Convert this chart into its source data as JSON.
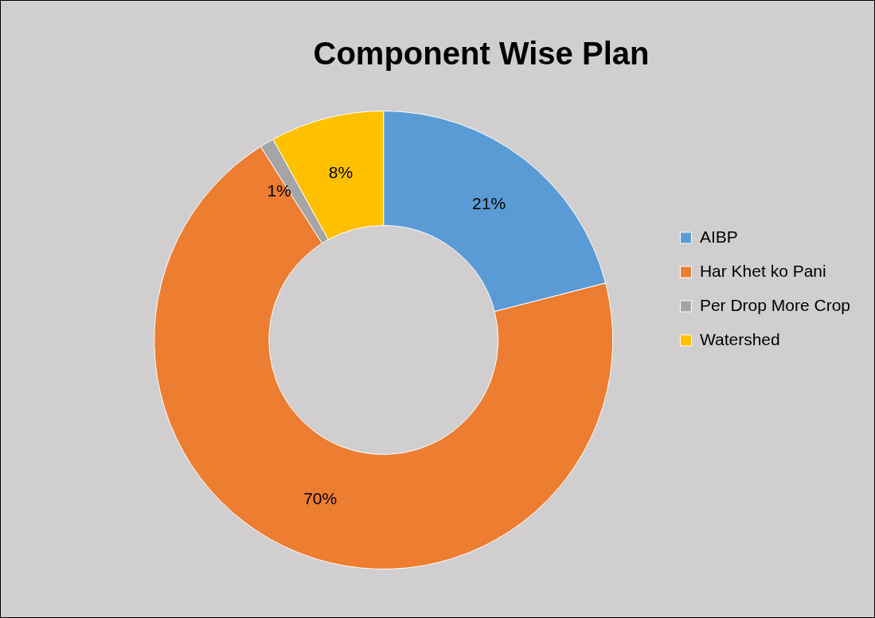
{
  "chart_data": {
    "type": "donut",
    "title": "Component Wise Plan",
    "categories": [
      "AIBP",
      "Har Khet ko Pani",
      "Per Drop More Crop",
      "Watershed"
    ],
    "values": [
      21,
      70,
      1,
      8
    ],
    "colors": [
      "#5b9bd5",
      "#ed7d31",
      "#a5a5a5",
      "#ffc000"
    ],
    "value_labels": [
      "21%",
      "70%",
      "1%",
      "8%"
    ],
    "legend": "right"
  }
}
